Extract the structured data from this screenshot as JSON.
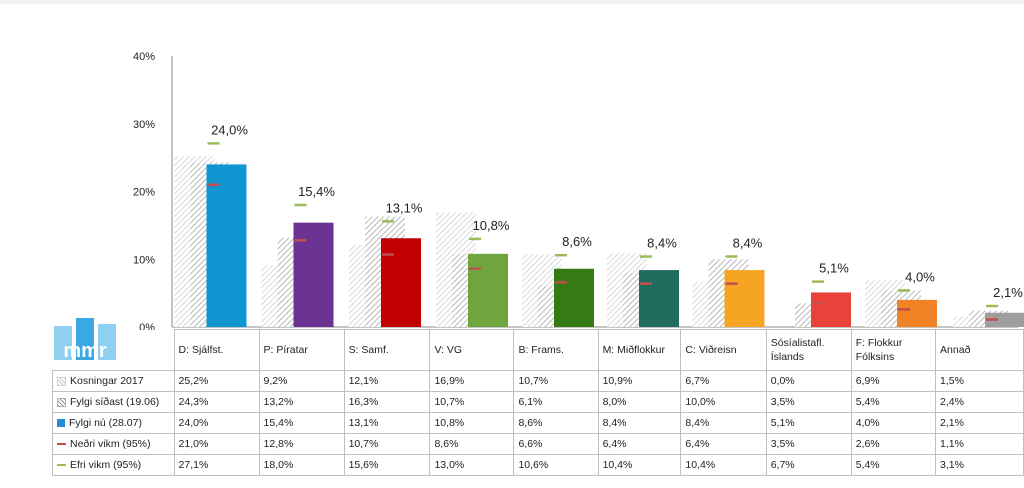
{
  "chart_data": {
    "type": "bar",
    "ylim": [
      0,
      40
    ],
    "yticks": [
      "0%",
      "10%",
      "20%",
      "30%",
      "40%"
    ],
    "grid": false,
    "categories": [
      "D: Sjálfst.",
      "P: Píratar",
      "S: Samf.",
      "V: VG",
      "B: Frams.",
      "M: Miðflokkur",
      "C: Viðreisn",
      "Sósíalistafl. Íslands",
      "F: Flokkur Fólksins",
      "Annað"
    ],
    "colors": [
      "#0f95d0",
      "#6a3391",
      "#c00000",
      "#6fa43f",
      "#357a14",
      "#1f6b5d",
      "#f5a521",
      "#e8423a",
      "#f18226",
      "#9e9e9e"
    ],
    "data_labels": [
      "24,0%",
      "15,4%",
      "13,1%",
      "10,8%",
      "8,6%",
      "8,4%",
      "8,4%",
      "5,1%",
      "4,0%",
      "2,1%"
    ],
    "series": [
      {
        "name": "Kosningar 2017",
        "style": "hatch-light",
        "values": [
          25.2,
          9.2,
          12.1,
          16.9,
          10.7,
          10.9,
          6.7,
          0.0,
          6.9,
          1.5
        ],
        "labels": [
          "25,2%",
          "9,2%",
          "12,1%",
          "16,9%",
          "10,7%",
          "10,9%",
          "6,7%",
          "0,0%",
          "6,9%",
          "1,5%"
        ]
      },
      {
        "name": "Fylgi síðast (19.06)",
        "style": "hatch-dark",
        "values": [
          24.3,
          13.2,
          16.3,
          10.7,
          6.1,
          8.0,
          10.0,
          3.5,
          5.4,
          2.4
        ],
        "labels": [
          "24,3%",
          "13,2%",
          "16,3%",
          "10,7%",
          "6,1%",
          "8,0%",
          "10,0%",
          "3,5%",
          "5,4%",
          "2,4%"
        ]
      },
      {
        "name": "Fylgi nú (28.07)",
        "style": "solid",
        "values": [
          24.0,
          15.4,
          13.1,
          10.8,
          8.6,
          8.4,
          8.4,
          5.1,
          4.0,
          2.1
        ],
        "labels": [
          "24,0%",
          "15,4%",
          "13,1%",
          "10,8%",
          "8,6%",
          "8,4%",
          "8,4%",
          "5,1%",
          "4,0%",
          "2,1%"
        ]
      },
      {
        "name": "Neðri vikm (95%)",
        "style": "marker-red",
        "color": "#c0504d",
        "values": [
          21.0,
          12.8,
          10.7,
          8.6,
          6.6,
          6.4,
          6.4,
          3.5,
          2.6,
          1.1
        ],
        "labels": [
          "21,0%",
          "12,8%",
          "10,7%",
          "8,6%",
          "6,6%",
          "6,4%",
          "6,4%",
          "3,5%",
          "2,6%",
          "1,1%"
        ]
      },
      {
        "name": "Efri vikm (95%)",
        "style": "marker-green",
        "color": "#9bbb59",
        "values": [
          27.1,
          18.0,
          15.6,
          13.0,
          10.6,
          10.4,
          10.4,
          6.7,
          5.4,
          3.1
        ],
        "labels": [
          "27,1%",
          "18,0%",
          "15,6%",
          "13,0%",
          "10,6%",
          "10,4%",
          "10,4%",
          "6,7%",
          "5,4%",
          "3,1%"
        ]
      }
    ]
  },
  "logo": {
    "text": "mmr",
    "color": "#1e9bd7"
  }
}
